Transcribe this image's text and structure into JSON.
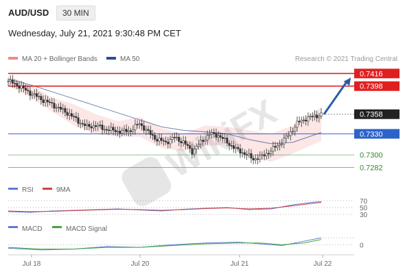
{
  "header": {
    "symbol": "AUD/USD",
    "timeframe": "30 MIN",
    "datetime": "Wednesday, July 21, 2021 9:30:48 PM CET"
  },
  "legend": {
    "ma20": "MA 20 + Bollinger Bands",
    "ma50": "MA 50",
    "credit": "Research © 2021 Trading Central",
    "colors": {
      "ma20": "#f08a8a",
      "ma50": "#2c4f8c",
      "bands": "#fbe0e0"
    }
  },
  "watermark": "WikiFX",
  "chart_data": [
    {
      "type": "line",
      "name": "price-panel",
      "ylim": [
        0.7265,
        0.7428
      ],
      "x_ticks": [
        "Jul 18",
        "Jul 20",
        "Jul 21",
        "Jul 22"
      ],
      "levels": [
        {
          "label": "0.7416",
          "value": 0.7416,
          "color": "#e02020",
          "kind": "resistance"
        },
        {
          "label": "0.7398",
          "value": 0.7398,
          "color": "#e02020",
          "kind": "resistance"
        },
        {
          "label": "0.7358",
          "value": 0.7358,
          "color": "#222222",
          "kind": "current"
        },
        {
          "label": "0.7330",
          "value": 0.733,
          "color": "#2c62c9",
          "kind": "pivot"
        },
        {
          "label": "0.7300",
          "value": 0.73,
          "color": "#2e8b2e",
          "kind": "support"
        },
        {
          "label": "0.7282",
          "value": 0.7282,
          "color": "#2e8b2e",
          "kind": "support"
        }
      ],
      "price_path": [
        [
          0,
          0.7405
        ],
        [
          4,
          0.74
        ],
        [
          8,
          0.7392
        ],
        [
          12,
          0.7385
        ],
        [
          16,
          0.7378
        ],
        [
          20,
          0.7372
        ],
        [
          24,
          0.7365
        ],
        [
          28,
          0.7358
        ],
        [
          32,
          0.7348
        ],
        [
          36,
          0.734
        ],
        [
          40,
          0.7342
        ],
        [
          44,
          0.7337
        ],
        [
          48,
          0.7335
        ],
        [
          52,
          0.7333
        ],
        [
          56,
          0.7335
        ],
        [
          60,
          0.7345
        ],
        [
          64,
          0.7332
        ],
        [
          68,
          0.7322
        ],
        [
          72,
          0.7318
        ],
        [
          76,
          0.7325
        ],
        [
          80,
          0.7318
        ],
        [
          84,
          0.7305
        ],
        [
          88,
          0.7318
        ],
        [
          92,
          0.733
        ],
        [
          96,
          0.7328
        ],
        [
          100,
          0.7318
        ],
        [
          104,
          0.7308
        ],
        [
          108,
          0.7302
        ],
        [
          112,
          0.7294
        ],
        [
          116,
          0.7298
        ],
        [
          120,
          0.7306
        ],
        [
          124,
          0.7316
        ],
        [
          128,
          0.7328
        ],
        [
          132,
          0.7345
        ],
        [
          136,
          0.7352
        ],
        [
          140,
          0.7355
        ],
        [
          143,
          0.7358
        ]
      ],
      "ma50_path": [
        [
          0,
          0.7408
        ],
        [
          10,
          0.74
        ],
        [
          20,
          0.739
        ],
        [
          30,
          0.738
        ],
        [
          40,
          0.737
        ],
        [
          50,
          0.736
        ],
        [
          60,
          0.735
        ],
        [
          70,
          0.734
        ],
        [
          80,
          0.7335
        ],
        [
          90,
          0.7333
        ],
        [
          100,
          0.733
        ],
        [
          110,
          0.7322
        ],
        [
          120,
          0.7316
        ],
        [
          130,
          0.7318
        ],
        [
          143,
          0.7332
        ]
      ],
      "boll_upper": [
        [
          0,
          0.7412
        ],
        [
          10,
          0.74
        ],
        [
          20,
          0.7382
        ],
        [
          30,
          0.7372
        ],
        [
          40,
          0.7358
        ],
        [
          50,
          0.7348
        ],
        [
          60,
          0.7354
        ],
        [
          70,
          0.7338
        ],
        [
          80,
          0.733
        ],
        [
          90,
          0.7342
        ],
        [
          100,
          0.734
        ],
        [
          110,
          0.7335
        ],
        [
          120,
          0.733
        ],
        [
          130,
          0.7342
        ],
        [
          143,
          0.7368
        ]
      ],
      "boll_lower": [
        [
          0,
          0.7398
        ],
        [
          10,
          0.7382
        ],
        [
          20,
          0.7362
        ],
        [
          30,
          0.7342
        ],
        [
          40,
          0.733
        ],
        [
          50,
          0.7326
        ],
        [
          60,
          0.7326
        ],
        [
          70,
          0.731
        ],
        [
          80,
          0.7305
        ],
        [
          90,
          0.7312
        ],
        [
          100,
          0.7316
        ],
        [
          110,
          0.73
        ],
        [
          120,
          0.729
        ],
        [
          130,
          0.7302
        ],
        [
          143,
          0.732
        ]
      ],
      "forecast_arrow": {
        "from": [
          143,
          0.7358
        ],
        "to": [
          170,
          0.7416
        ],
        "color": "#2a5ca8"
      }
    },
    {
      "type": "line",
      "name": "rsi-panel",
      "series": [
        {
          "name": "RSI",
          "color": "#5b7bd5"
        },
        {
          "name": "9MA",
          "color": "#d04040"
        }
      ],
      "ylim": [
        20,
        80
      ],
      "tick_labels": [
        "70",
        "50",
        "30"
      ],
      "tick_values": [
        70,
        50,
        30
      ],
      "rsi_path": [
        [
          0,
          38
        ],
        [
          10,
          36
        ],
        [
          20,
          40
        ],
        [
          30,
          42
        ],
        [
          40,
          44
        ],
        [
          50,
          46
        ],
        [
          60,
          43
        ],
        [
          70,
          40
        ],
        [
          80,
          45
        ],
        [
          90,
          48
        ],
        [
          100,
          50
        ],
        [
          110,
          44
        ],
        [
          120,
          46
        ],
        [
          130,
          58
        ],
        [
          140,
          66
        ],
        [
          143,
          67
        ]
      ],
      "ma9_path": [
        [
          0,
          40
        ],
        [
          10,
          38
        ],
        [
          20,
          39
        ],
        [
          30,
          41
        ],
        [
          40,
          43
        ],
        [
          50,
          45
        ],
        [
          60,
          44
        ],
        [
          70,
          42
        ],
        [
          80,
          44
        ],
        [
          90,
          47
        ],
        [
          100,
          49
        ],
        [
          110,
          46
        ],
        [
          120,
          48
        ],
        [
          130,
          55
        ],
        [
          140,
          63
        ],
        [
          143,
          65
        ]
      ]
    },
    {
      "type": "line",
      "name": "macd-panel",
      "series": [
        {
          "name": "MACD",
          "color": "#5b7bd5"
        },
        {
          "name": "MACD Signal",
          "color": "#45a33c"
        }
      ],
      "ylim": [
        -0.001,
        0.0012
      ],
      "tick_labels": [
        "0"
      ],
      "tick_values": [
        0
      ],
      "macd_path": [
        [
          0,
          -0.0004
        ],
        [
          15,
          -0.0006
        ],
        [
          30,
          -0.0005
        ],
        [
          45,
          -0.0002
        ],
        [
          60,
          -0.0003
        ],
        [
          75,
          0.0
        ],
        [
          90,
          0.0002
        ],
        [
          105,
          0.0003
        ],
        [
          115,
          0.0001
        ],
        [
          125,
          -0.0001
        ],
        [
          135,
          0.0004
        ],
        [
          143,
          0.0008
        ]
      ],
      "signal_path": [
        [
          0,
          -0.0003
        ],
        [
          15,
          -0.0005
        ],
        [
          30,
          -0.0005
        ],
        [
          45,
          -0.0003
        ],
        [
          60,
          -0.0003
        ],
        [
          75,
          -0.0001
        ],
        [
          90,
          0.0001
        ],
        [
          105,
          0.0002
        ],
        [
          115,
          0.0002
        ],
        [
          125,
          0.0
        ],
        [
          135,
          0.0002
        ],
        [
          143,
          0.0006
        ]
      ]
    }
  ]
}
